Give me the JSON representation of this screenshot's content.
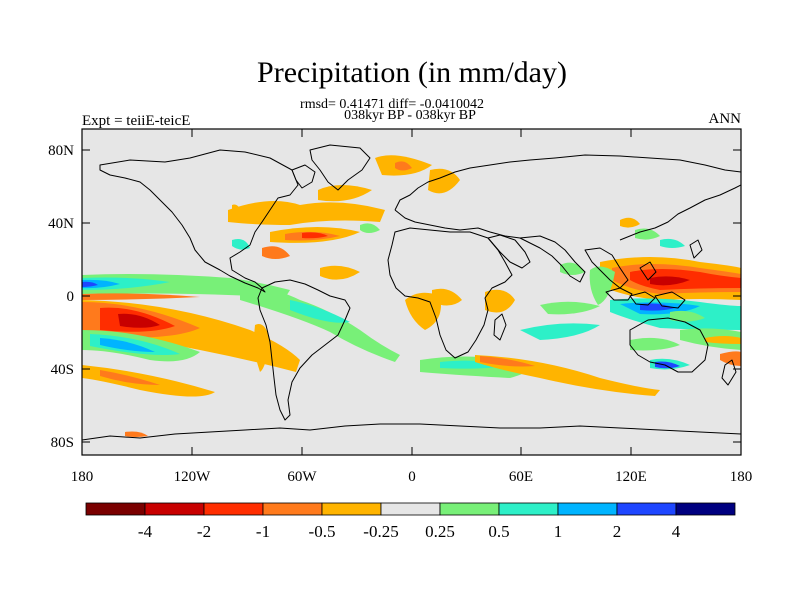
{
  "title": "Precipitation (in mm/day)",
  "stats_line": "rmsd= 0.41471 diff= -0.0410042",
  "period_line": "038kyr BP - 038kyr BP",
  "experiment_label": "Expt = teiiE-teicE",
  "season_label": "ANN",
  "y_axis_labels": [
    "80N",
    "40N",
    "0",
    "40S",
    "80S"
  ],
  "x_axis_labels": [
    "180",
    "120W",
    "60W",
    "0",
    "60E",
    "120E",
    "180"
  ],
  "colorbar": {
    "colors": [
      "#7a0000",
      "#c80000",
      "#ff2d00",
      "#ff7a1c",
      "#ffb400",
      "#e6e6e6",
      "#78f078",
      "#2df0c8",
      "#00b4ff",
      "#1e46ff",
      "#000080"
    ],
    "labels": [
      "-4",
      "-2",
      "-1",
      "-0.5",
      "-0.25",
      "0.25",
      "0.5",
      "1",
      "2",
      "4"
    ]
  },
  "colors": {
    "ocean_background": "#e6e6e6",
    "coastline": "#000000"
  }
}
